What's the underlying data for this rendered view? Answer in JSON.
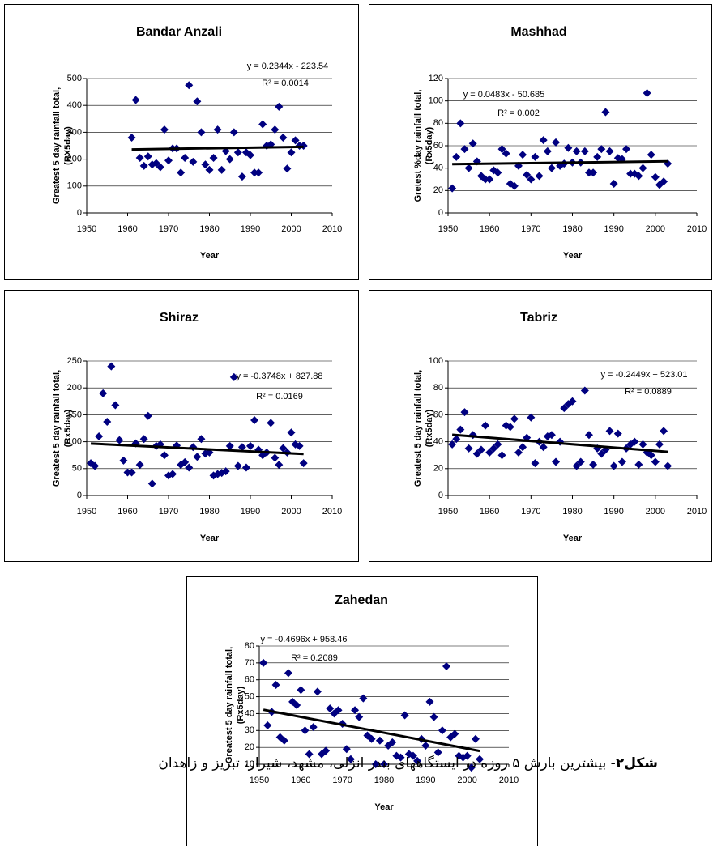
{
  "chart_data": [
    {
      "type": "scatter",
      "title": "Bandar Anzali",
      "ylabel": [
        "Greatest 5 day rainfall total,",
        "(RX5day)"
      ],
      "xlabel": "Year",
      "color": "#000080",
      "x": [
        1961,
        1962,
        1963,
        1964,
        1965,
        1966,
        1967,
        1968,
        1969,
        1970,
        1971,
        1972,
        1973,
        1974,
        1975,
        1976,
        1977,
        1978,
        1979,
        1980,
        1981,
        1982,
        1983,
        1984,
        1985,
        1986,
        1987,
        1988,
        1989,
        1990,
        1991,
        1992,
        1993,
        1994,
        1995,
        1996,
        1997,
        1998,
        1999,
        2000,
        2001,
        2002,
        2003
      ],
      "values": [
        280,
        420,
        205,
        175,
        210,
        180,
        185,
        170,
        310,
        195,
        240,
        240,
        150,
        205,
        475,
        190,
        415,
        300,
        180,
        160,
        205,
        310,
        160,
        230,
        200,
        300,
        225,
        135,
        225,
        215,
        150,
        150,
        330,
        250,
        255,
        310,
        395,
        280,
        165,
        225,
        270,
        250,
        250
      ],
      "trendline": {
        "label": "y = 0.2344x - 223.54",
        "slope": 0.2344,
        "intercept": -223.54,
        "r2": "R² = 0.0014"
      },
      "xlim": [
        1950,
        2010
      ],
      "xticks": [
        1950,
        1960,
        1970,
        1980,
        1990,
        2000,
        2010
      ],
      "ylim": [
        0,
        500
      ],
      "yticks": [
        0,
        100,
        200,
        300,
        400,
        500
      ],
      "grid": true
    },
    {
      "type": "scatter",
      "title": "Mashhad",
      "ylabel": [
        "Gretest %day rainfall total,",
        "(Rx5day)"
      ],
      "xlabel": "Year",
      "color": "#000080",
      "x": [
        1951,
        1952,
        1953,
        1954,
        1955,
        1956,
        1957,
        1958,
        1959,
        1960,
        1961,
        1962,
        1963,
        1964,
        1965,
        1966,
        1967,
        1968,
        1969,
        1970,
        1971,
        1972,
        1973,
        1974,
        1975,
        1976,
        1977,
        1978,
        1979,
        1980,
        1981,
        1982,
        1983,
        1984,
        1985,
        1986,
        1987,
        1988,
        1989,
        1990,
        1991,
        1992,
        1993,
        1994,
        1995,
        1996,
        1997,
        1998,
        1999,
        2000,
        2001,
        2002,
        2003
      ],
      "values": [
        22,
        50,
        80,
        57,
        40,
        62,
        46,
        33,
        30,
        30,
        38,
        36,
        57,
        53,
        26,
        24,
        42,
        52,
        34,
        30,
        50,
        33,
        65,
        55,
        40,
        63,
        42,
        44,
        58,
        45,
        55,
        45,
        55,
        36,
        36,
        50,
        57,
        90,
        55,
        26,
        49,
        48,
        57,
        35,
        35,
        33,
        40,
        107,
        52,
        32,
        25,
        28,
        44
      ],
      "trendline": {
        "label": "y = 0.0483x - 50.685",
        "slope": 0.0483,
        "intercept": -50.685,
        "r2": "R² = 0.002"
      },
      "xlim": [
        1950,
        2010
      ],
      "xticks": [
        1950,
        1960,
        1970,
        1980,
        1990,
        2000,
        2010
      ],
      "ylim": [
        0,
        120
      ],
      "yticks": [
        0,
        20,
        40,
        60,
        80,
        100,
        120
      ],
      "grid": true
    },
    {
      "type": "scatter",
      "title": "Shiraz",
      "ylabel": [
        "Greatest 5 day rainfall total,",
        "(Rx5day)"
      ],
      "xlabel": "Year",
      "color": "#000080",
      "x": [
        1951,
        1952,
        1953,
        1954,
        1955,
        1956,
        1957,
        1958,
        1959,
        1960,
        1961,
        1962,
        1963,
        1964,
        1965,
        1966,
        1967,
        1968,
        1969,
        1970,
        1971,
        1972,
        1973,
        1974,
        1975,
        1976,
        1977,
        1978,
        1979,
        1980,
        1981,
        1982,
        1983,
        1984,
        1985,
        1986,
        1987,
        1988,
        1989,
        1990,
        1991,
        1992,
        1993,
        1994,
        1995,
        1996,
        1997,
        1998,
        1999,
        2000,
        2001,
        2002,
        2003
      ],
      "values": [
        60,
        55,
        110,
        190,
        137,
        240,
        168,
        103,
        65,
        43,
        43,
        97,
        57,
        105,
        148,
        22,
        92,
        95,
        75,
        37,
        40,
        93,
        57,
        62,
        52,
        90,
        72,
        105,
        78,
        80,
        37,
        40,
        42,
        45,
        92,
        220,
        55,
        90,
        52,
        92,
        140,
        85,
        75,
        80,
        135,
        70,
        57,
        88,
        80,
        117,
        95,
        92,
        60
      ],
      "trendline": {
        "label": "y = -0.3748x + 827.88",
        "slope": -0.3748,
        "intercept": 827.88,
        "r2": "R² = 0.0169"
      },
      "xlim": [
        1950,
        2010
      ],
      "xticks": [
        1950,
        1960,
        1970,
        1980,
        1990,
        2000,
        2010
      ],
      "ylim": [
        0,
        250
      ],
      "yticks": [
        0,
        50,
        100,
        150,
        200,
        250
      ],
      "grid": true
    },
    {
      "type": "scatter",
      "title": "Tabriz",
      "ylabel": [
        "Greatest 5 day rainfall total,",
        "(Rx5day)"
      ],
      "xlabel": "Year",
      "color": "#000080",
      "x": [
        1951,
        1952,
        1953,
        1954,
        1955,
        1956,
        1957,
        1958,
        1959,
        1960,
        1961,
        1962,
        1963,
        1964,
        1965,
        1966,
        1967,
        1968,
        1969,
        1970,
        1971,
        1972,
        1973,
        1974,
        1975,
        1976,
        1977,
        1978,
        1979,
        1980,
        1981,
        1982,
        1983,
        1984,
        1985,
        1986,
        1987,
        1988,
        1989,
        1990,
        1991,
        1992,
        1993,
        1994,
        1995,
        1996,
        1997,
        1998,
        1999,
        2000,
        2001,
        2002,
        2003
      ],
      "values": [
        38,
        42,
        49,
        62,
        35,
        45,
        31,
        34,
        52,
        32,
        35,
        38,
        30,
        52,
        51,
        57,
        32,
        36,
        43,
        58,
        24,
        40,
        36,
        44,
        45,
        25,
        40,
        65,
        68,
        70,
        22,
        25,
        78,
        45,
        23,
        35,
        31,
        34,
        48,
        22,
        46,
        25,
        35,
        38,
        40,
        23,
        38,
        32,
        30,
        25,
        38,
        48,
        22
      ],
      "trendline": {
        "label": "y = -0.2449x + 523.01",
        "slope": -0.2449,
        "intercept": 523.01,
        "r2": "R² = 0.0889"
      },
      "xlim": [
        1950,
        2010
      ],
      "xticks": [
        1950,
        1960,
        1970,
        1980,
        1990,
        2000,
        2010
      ],
      "ylim": [
        0,
        100
      ],
      "yticks": [
        0,
        20,
        40,
        60,
        80,
        100
      ],
      "grid": true
    },
    {
      "type": "scatter",
      "title": "Zahedan",
      "ylabel": [
        "Greatest 5 day rainfall total,",
        "(Rx5day)"
      ],
      "xlabel": "Year",
      "color": "#000080",
      "x": [
        1951,
        1952,
        1953,
        1954,
        1955,
        1956,
        1957,
        1958,
        1959,
        1960,
        1961,
        1962,
        1963,
        1964,
        1965,
        1966,
        1967,
        1968,
        1969,
        1970,
        1971,
        1972,
        1973,
        1974,
        1975,
        1976,
        1977,
        1978,
        1979,
        1980,
        1981,
        1982,
        1983,
        1984,
        1985,
        1986,
        1987,
        1988,
        1989,
        1990,
        1991,
        1992,
        1993,
        1994,
        1995,
        1996,
        1997,
        1998,
        1999,
        2000,
        2001,
        2002,
        2003
      ],
      "values": [
        70,
        33,
        41,
        57,
        26,
        24,
        64,
        47,
        45,
        54,
        30,
        16,
        32,
        53,
        16,
        18,
        43,
        40,
        42,
        34,
        19,
        13,
        42,
        38,
        49,
        27,
        25,
        10,
        24,
        10,
        21,
        23,
        15,
        14,
        39,
        16,
        15,
        12,
        25,
        21,
        47,
        38,
        17,
        30,
        68,
        26,
        28,
        15,
        14,
        15,
        8,
        25,
        13
      ],
      "trendline": {
        "label": "y = -0.4696x + 958.46",
        "slope": -0.4696,
        "intercept": 958.46,
        "r2": "R² = 0.2089"
      },
      "xlim": [
        1950,
        2010
      ],
      "xticks": [
        1950,
        1960,
        1970,
        1980,
        1990,
        2000,
        2010
      ],
      "ylim": [
        10,
        80
      ],
      "yticks": [
        10,
        20,
        30,
        40,
        50,
        60,
        70,
        80
      ],
      "grid": true
    }
  ],
  "caption": {
    "label": "شکل۲",
    "text": "- بیشترین بارش ۵ روزه در ایستگاههای بندر انزلی، مشهد، شیراز، تبریز و زاهدان"
  }
}
